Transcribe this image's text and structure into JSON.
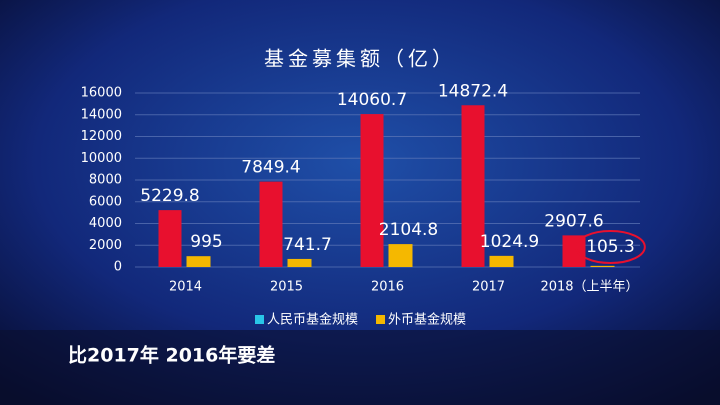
{
  "chart_data": {
    "type": "bar",
    "title": "基金募集额（亿）",
    "categories": [
      "2014",
      "2015",
      "2016",
      "2017",
      "2018（上半年）"
    ],
    "series": [
      {
        "name": "人民币基金规模",
        "color": "#e8102e",
        "legend_color": "#29c6e8",
        "values": [
          5229.8,
          7849.4,
          14060.7,
          14872.4,
          2907.6
        ]
      },
      {
        "name": "外币基金规模",
        "color": "#f5b800",
        "legend_color": "#f5b800",
        "values": [
          995,
          741.7,
          2104.8,
          1024.9,
          105.3
        ]
      }
    ],
    "ylim": [
      0,
      16000
    ],
    "yticks": [
      0,
      2000,
      4000,
      6000,
      8000,
      10000,
      12000,
      14000,
      16000
    ],
    "grid": true,
    "caption": "比2017年 2016年要差"
  }
}
